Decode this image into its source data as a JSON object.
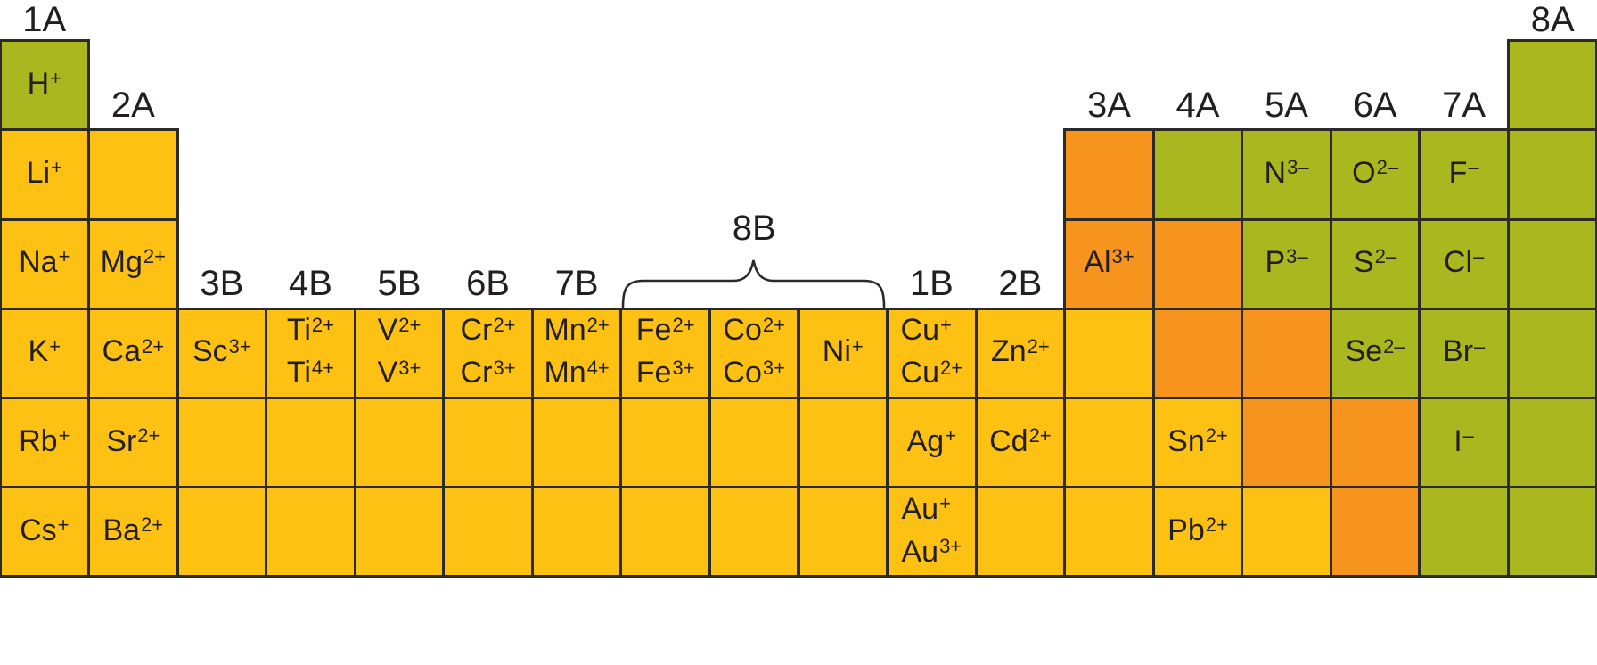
{
  "figure": {
    "description": "Periodic table of common monatomic ions by group",
    "colors": {
      "yellow": "#fdc113",
      "green": "#aab71f",
      "orange": "#f7941e",
      "border": "#2b2a27",
      "text": "#231f20",
      "background": "#ffffff"
    },
    "group_labels": [
      {
        "text": "1A",
        "col": 1,
        "level": "top"
      },
      {
        "text": "2A",
        "col": 2,
        "level": "mid"
      },
      {
        "text": "3B",
        "col": 3,
        "level": "low"
      },
      {
        "text": "4B",
        "col": 4,
        "level": "low"
      },
      {
        "text": "5B",
        "col": 5,
        "level": "low"
      },
      {
        "text": "6B",
        "col": 6,
        "level": "low"
      },
      {
        "text": "7B",
        "col": 7,
        "level": "low"
      },
      {
        "text": "8B",
        "col": 8,
        "span": 3,
        "level": "brace"
      },
      {
        "text": "1B",
        "col": 11,
        "level": "low"
      },
      {
        "text": "2B",
        "col": 12,
        "level": "low"
      },
      {
        "text": "3A",
        "col": 13,
        "level": "mid"
      },
      {
        "text": "4A",
        "col": 14,
        "level": "mid"
      },
      {
        "text": "5A",
        "col": 15,
        "level": "mid"
      },
      {
        "text": "6A",
        "col": 16,
        "level": "mid"
      },
      {
        "text": "7A",
        "col": 17,
        "level": "mid"
      },
      {
        "text": "8A",
        "col": 18,
        "level": "top"
      }
    ],
    "cells": [
      {
        "row": 1,
        "col": 1,
        "color": "green",
        "ions": [
          {
            "base": "H",
            "charge": "+"
          }
        ]
      },
      {
        "row": 1,
        "col": 18,
        "color": "green",
        "ions": []
      },
      {
        "row": 2,
        "col": 1,
        "color": "yellow",
        "ions": [
          {
            "base": "Li",
            "charge": "+"
          }
        ]
      },
      {
        "row": 2,
        "col": 2,
        "color": "yellow",
        "ions": []
      },
      {
        "row": 2,
        "col": 13,
        "color": "orange",
        "ions": []
      },
      {
        "row": 2,
        "col": 14,
        "color": "green",
        "ions": []
      },
      {
        "row": 2,
        "col": 15,
        "color": "green",
        "ions": [
          {
            "base": "N",
            "charge": "3–"
          }
        ]
      },
      {
        "row": 2,
        "col": 16,
        "color": "green",
        "ions": [
          {
            "base": "O",
            "charge": "2–"
          }
        ]
      },
      {
        "row": 2,
        "col": 17,
        "color": "green",
        "ions": [
          {
            "base": "F",
            "charge": "–"
          }
        ]
      },
      {
        "row": 2,
        "col": 18,
        "color": "green",
        "ions": []
      },
      {
        "row": 3,
        "col": 1,
        "color": "yellow",
        "ions": [
          {
            "base": "Na",
            "charge": "+"
          }
        ]
      },
      {
        "row": 3,
        "col": 2,
        "color": "yellow",
        "ions": [
          {
            "base": "Mg",
            "charge": "2+"
          }
        ]
      },
      {
        "row": 3,
        "col": 13,
        "color": "orange",
        "ions": [
          {
            "base": "Al",
            "charge": "3+"
          }
        ]
      },
      {
        "row": 3,
        "col": 14,
        "color": "orange",
        "ions": []
      },
      {
        "row": 3,
        "col": 15,
        "color": "green",
        "ions": [
          {
            "base": "P",
            "charge": "3–"
          }
        ]
      },
      {
        "row": 3,
        "col": 16,
        "color": "green",
        "ions": [
          {
            "base": "S",
            "charge": "2–"
          }
        ]
      },
      {
        "row": 3,
        "col": 17,
        "color": "green",
        "ions": [
          {
            "base": "Cl",
            "charge": "–"
          }
        ]
      },
      {
        "row": 3,
        "col": 18,
        "color": "green",
        "ions": []
      },
      {
        "row": 4,
        "col": 1,
        "color": "yellow",
        "ions": [
          {
            "base": "K",
            "charge": "+"
          }
        ]
      },
      {
        "row": 4,
        "col": 2,
        "color": "yellow",
        "ions": [
          {
            "base": "Ca",
            "charge": "2+"
          }
        ]
      },
      {
        "row": 4,
        "col": 3,
        "color": "yellow",
        "ions": [
          {
            "base": "Sc",
            "charge": "3+"
          }
        ]
      },
      {
        "row": 4,
        "col": 4,
        "color": "yellow",
        "ions": [
          {
            "base": "Ti",
            "charge": "2+"
          },
          {
            "base": "Ti",
            "charge": "4+"
          }
        ]
      },
      {
        "row": 4,
        "col": 5,
        "color": "yellow",
        "ions": [
          {
            "base": "V",
            "charge": "2+"
          },
          {
            "base": "V",
            "charge": "3+"
          }
        ]
      },
      {
        "row": 4,
        "col": 6,
        "color": "yellow",
        "ions": [
          {
            "base": "Cr",
            "charge": "2+"
          },
          {
            "base": "Cr",
            "charge": "3+"
          }
        ]
      },
      {
        "row": 4,
        "col": 7,
        "color": "yellow",
        "ions": [
          {
            "base": "Mn",
            "charge": "2+"
          },
          {
            "base": "Mn",
            "charge": "4+"
          }
        ]
      },
      {
        "row": 4,
        "col": 8,
        "color": "yellow",
        "ions": [
          {
            "base": "Fe",
            "charge": "2+"
          },
          {
            "base": "Fe",
            "charge": "3+"
          }
        ]
      },
      {
        "row": 4,
        "col": 9,
        "color": "yellow",
        "ions": [
          {
            "base": "Co",
            "charge": "2+"
          },
          {
            "base": "Co",
            "charge": "3+"
          }
        ]
      },
      {
        "row": 4,
        "col": 10,
        "color": "yellow",
        "ions": [
          {
            "base": "Ni",
            "charge": "+"
          }
        ]
      },
      {
        "row": 4,
        "col": 11,
        "color": "yellow",
        "ions": [
          {
            "base": "Cu",
            "charge": "+"
          },
          {
            "base": "Cu",
            "charge": "2+"
          }
        ]
      },
      {
        "row": 4,
        "col": 12,
        "color": "yellow",
        "ions": [
          {
            "base": "Zn",
            "charge": "2+"
          }
        ]
      },
      {
        "row": 4,
        "col": 13,
        "color": "yellow",
        "ions": []
      },
      {
        "row": 4,
        "col": 14,
        "color": "orange",
        "ions": []
      },
      {
        "row": 4,
        "col": 15,
        "color": "orange",
        "ions": []
      },
      {
        "row": 4,
        "col": 16,
        "color": "green",
        "ions": [
          {
            "base": "Se",
            "charge": "2–"
          }
        ]
      },
      {
        "row": 4,
        "col": 17,
        "color": "green",
        "ions": [
          {
            "base": "Br",
            "charge": "–"
          }
        ]
      },
      {
        "row": 4,
        "col": 18,
        "color": "green",
        "ions": []
      },
      {
        "row": 5,
        "col": 1,
        "color": "yellow",
        "ions": [
          {
            "base": "Rb",
            "charge": "+"
          }
        ]
      },
      {
        "row": 5,
        "col": 2,
        "color": "yellow",
        "ions": [
          {
            "base": "Sr",
            "charge": "2+"
          }
        ]
      },
      {
        "row": 5,
        "col": 3,
        "color": "yellow",
        "ions": []
      },
      {
        "row": 5,
        "col": 4,
        "color": "yellow",
        "ions": []
      },
      {
        "row": 5,
        "col": 5,
        "color": "yellow",
        "ions": []
      },
      {
        "row": 5,
        "col": 6,
        "color": "yellow",
        "ions": []
      },
      {
        "row": 5,
        "col": 7,
        "color": "yellow",
        "ions": []
      },
      {
        "row": 5,
        "col": 8,
        "color": "yellow",
        "ions": []
      },
      {
        "row": 5,
        "col": 9,
        "color": "yellow",
        "ions": []
      },
      {
        "row": 5,
        "col": 10,
        "color": "yellow",
        "ions": []
      },
      {
        "row": 5,
        "col": 11,
        "color": "yellow",
        "ions": [
          {
            "base": "Ag",
            "charge": "+"
          }
        ]
      },
      {
        "row": 5,
        "col": 12,
        "color": "yellow",
        "ions": [
          {
            "base": "Cd",
            "charge": "2+"
          }
        ]
      },
      {
        "row": 5,
        "col": 13,
        "color": "yellow",
        "ions": []
      },
      {
        "row": 5,
        "col": 14,
        "color": "yellow",
        "ions": [
          {
            "base": "Sn",
            "charge": "2+"
          }
        ]
      },
      {
        "row": 5,
        "col": 15,
        "color": "orange",
        "ions": []
      },
      {
        "row": 5,
        "col": 16,
        "color": "orange",
        "ions": []
      },
      {
        "row": 5,
        "col": 17,
        "color": "green",
        "ions": [
          {
            "base": "I",
            "charge": "–"
          }
        ]
      },
      {
        "row": 5,
        "col": 18,
        "color": "green",
        "ions": []
      },
      {
        "row": 6,
        "col": 1,
        "color": "yellow",
        "ions": [
          {
            "base": "Cs",
            "charge": "+"
          }
        ]
      },
      {
        "row": 6,
        "col": 2,
        "color": "yellow",
        "ions": [
          {
            "base": "Ba",
            "charge": "2+"
          }
        ]
      },
      {
        "row": 6,
        "col": 3,
        "color": "yellow",
        "ions": []
      },
      {
        "row": 6,
        "col": 4,
        "color": "yellow",
        "ions": []
      },
      {
        "row": 6,
        "col": 5,
        "color": "yellow",
        "ions": []
      },
      {
        "row": 6,
        "col": 6,
        "color": "yellow",
        "ions": []
      },
      {
        "row": 6,
        "col": 7,
        "color": "yellow",
        "ions": []
      },
      {
        "row": 6,
        "col": 8,
        "color": "yellow",
        "ions": []
      },
      {
        "row": 6,
        "col": 9,
        "color": "yellow",
        "ions": []
      },
      {
        "row": 6,
        "col": 10,
        "color": "yellow",
        "ions": []
      },
      {
        "row": 6,
        "col": 11,
        "color": "yellow",
        "ions": [
          {
            "base": "Au",
            "charge": "+"
          },
          {
            "base": "Au",
            "charge": "3+"
          }
        ]
      },
      {
        "row": 6,
        "col": 12,
        "color": "yellow",
        "ions": []
      },
      {
        "row": 6,
        "col": 13,
        "color": "yellow",
        "ions": []
      },
      {
        "row": 6,
        "col": 14,
        "color": "yellow",
        "ions": [
          {
            "base": "Pb",
            "charge": "2+"
          }
        ]
      },
      {
        "row": 6,
        "col": 15,
        "color": "yellow",
        "ions": []
      },
      {
        "row": 6,
        "col": 16,
        "color": "orange",
        "ions": []
      },
      {
        "row": 6,
        "col": 17,
        "color": "green",
        "ions": []
      },
      {
        "row": 6,
        "col": 18,
        "color": "green",
        "ions": []
      }
    ]
  }
}
